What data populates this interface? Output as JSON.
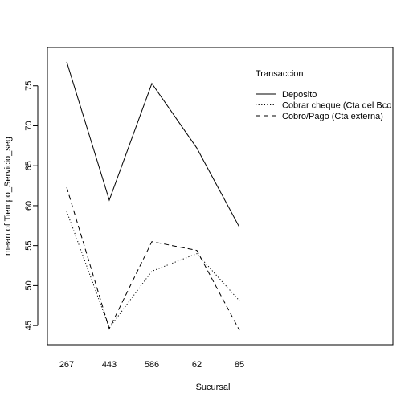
{
  "chart_data": {
    "type": "line",
    "xlabel": "Sucursal",
    "ylabel": "mean of Tiempo_Servicio_seg",
    "categories": [
      "267",
      "443",
      "586",
      "62",
      "85"
    ],
    "ylim": [
      42.6,
      79.8
    ],
    "yticks": [
      45,
      50,
      55,
      60,
      65,
      70,
      75
    ],
    "grid": false,
    "legend": {
      "title": "Transaccion",
      "placement": "top-right inside plot"
    },
    "series": [
      {
        "name": "Deposito",
        "style": "solid",
        "values": [
          78.0,
          60.7,
          75.3,
          67.2,
          57.3
        ]
      },
      {
        "name": "Cobrar cheque (Cta del Bco",
        "style": "dotted",
        "values": [
          59.3,
          44.7,
          51.8,
          54.0,
          48.1
        ]
      },
      {
        "name": "Cobro/Pago (Cta externa)",
        "style": "dashed",
        "values": [
          62.3,
          44.6,
          55.5,
          54.4,
          44.4
        ]
      }
    ],
    "line_color": "#000000"
  }
}
